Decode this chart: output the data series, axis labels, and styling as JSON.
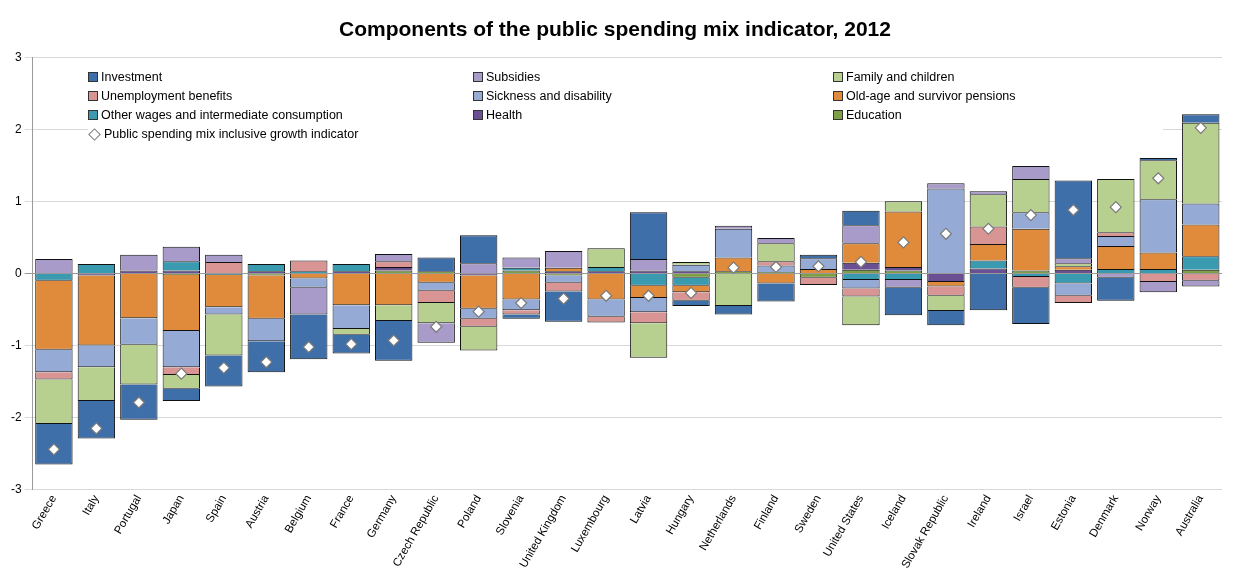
{
  "chart_data": {
    "type": "bar",
    "title": "Components of the public spending mix indicator, 2012",
    "stacked": true,
    "ylim": [
      -3,
      3
    ],
    "yticks": [
      -3,
      -2,
      -1,
      0,
      1,
      2,
      3
    ],
    "grid": "y",
    "legend": "top left",
    "categories": [
      "Greece",
      "Italy",
      "Portugal",
      "Japan",
      "Spain",
      "Austria",
      "Belgium",
      "France",
      "Germany",
      "Czech Republic",
      "Poland",
      "Slovenia",
      "United Kingdom",
      "Luxembourg",
      "Latvia",
      "Hungary",
      "Netherlands",
      "Finland",
      "Sweden",
      "United States",
      "Iceland",
      "Slovak Republic",
      "Ireland",
      "Israel",
      "Estonia",
      "Denmark",
      "Norway",
      "Australia"
    ],
    "series": [
      {
        "name": "Education",
        "color": "#7f9f45",
        "values": [
          null,
          null,
          null,
          -0.02,
          null,
          -0.03,
          null,
          null,
          0.04,
          0.03,
          null,
          0.04,
          -0.03,
          null,
          null,
          -0.06,
          0.03,
          0.02,
          -0.06,
          0.05,
          0.04,
          null,
          null,
          0.04,
          null,
          null,
          null,
          0.05
        ]
      },
      {
        "name": "Health",
        "color": "#6a4f93",
        "values": [
          null,
          -0.03,
          0.04,
          0.04,
          null,
          0.03,
          null,
          0.03,
          0.05,
          null,
          -0.03,
          null,
          0.03,
          0.03,
          0.04,
          0.03,
          null,
          null,
          null,
          0.1,
          0.05,
          -0.12,
          0.07,
          null,
          0.05,
          null,
          null,
          null
        ]
      },
      {
        "name": "Other wages and intermediate consumption",
        "color": "#3a9ab0",
        "values": [
          -0.1,
          0.13,
          null,
          0.13,
          -0.02,
          0.1,
          0.03,
          0.1,
          null,
          null,
          null,
          0.04,
          null,
          0.06,
          -0.17,
          -0.11,
          null,
          null,
          null,
          -0.09,
          -0.09,
          null,
          0.11,
          -0.05,
          -0.14,
          0.06,
          0.06,
          0.19
        ]
      },
      {
        "name": "Old-age and survivor pensions",
        "color": "#e08a3c",
        "values": [
          -0.96,
          -0.97,
          -0.62,
          -0.78,
          -0.45,
          -0.6,
          -0.07,
          -0.44,
          -0.44,
          -0.13,
          -0.46,
          -0.36,
          0.05,
          -0.36,
          -0.17,
          -0.09,
          0.19,
          -0.14,
          0.06,
          0.27,
          0.77,
          -0.06,
          0.23,
          0.58,
          0.05,
          0.32,
          0.23,
          0.44
        ]
      },
      {
        "name": "Sickness and disability",
        "color": "#95abd6",
        "values": [
          -0.31,
          -0.3,
          -0.37,
          -0.5,
          -0.1,
          -0.31,
          -0.13,
          -0.33,
          null,
          -0.11,
          -0.14,
          -0.15,
          -0.1,
          -0.24,
          -0.2,
          0.09,
          0.4,
          0.09,
          0.15,
          -0.12,
          null,
          1.18,
          null,
          0.23,
          -0.17,
          0.14,
          0.74,
          0.29
        ]
      },
      {
        "name": "Unemployment benefits",
        "color": "#d99594",
        "values": [
          -0.1,
          null,
          null,
          -0.11,
          0.16,
          null,
          0.15,
          null,
          0.08,
          -0.17,
          -0.11,
          -0.06,
          -0.12,
          -0.08,
          -0.15,
          -0.12,
          null,
          0.06,
          -0.1,
          -0.11,
          null,
          -0.13,
          0.24,
          -0.15,
          -0.1,
          0.05,
          -0.12,
          -0.1
        ]
      },
      {
        "name": "Family and children",
        "color": "#b8d08f",
        "values": [
          -0.62,
          -0.47,
          -0.55,
          -0.19,
          -0.57,
          null,
          null,
          -0.08,
          -0.22,
          -0.28,
          -0.33,
          null,
          null,
          0.26,
          -0.48,
          0.04,
          -0.45,
          0.25,
          null,
          -0.4,
          0.14,
          -0.21,
          0.45,
          0.46,
          0.04,
          0.74,
          0.54,
          1.12
        ]
      },
      {
        "name": "Subsidies",
        "color": "#a99bc9",
        "values": [
          0.2,
          null,
          0.22,
          0.2,
          0.1,
          null,
          -0.37,
          null,
          0.1,
          -0.27,
          0.14,
          0.14,
          0.23,
          null,
          0.16,
          null,
          0.04,
          0.07,
          null,
          0.25,
          -0.11,
          0.07,
          0.04,
          0.18,
          0.07,
          -0.06,
          -0.14,
          -0.08
        ]
      },
      {
        "name": "Investment",
        "color": "#3f6fa8",
        "values": [
          -0.56,
          -0.52,
          -0.49,
          -0.17,
          -0.43,
          -0.43,
          -0.62,
          -0.26,
          -0.55,
          0.19,
          0.39,
          -0.06,
          -0.42,
          null,
          0.65,
          -0.07,
          -0.12,
          -0.25,
          0.05,
          0.2,
          -0.38,
          -0.2,
          -0.51,
          -0.5,
          1.08,
          -0.32,
          0.03,
          0.12
        ]
      },
      {
        "name": "Public spending mix inclusive growth indicator",
        "type": "scatter",
        "marker": "diamond",
        "color": "#ffffff",
        "values": [
          -2.44,
          -2.15,
          -1.79,
          -1.39,
          -1.31,
          -1.23,
          -1.02,
          -0.98,
          -0.93,
          -0.74,
          -0.53,
          -0.41,
          -0.35,
          -0.31,
          -0.31,
          -0.27,
          0.08,
          0.09,
          0.1,
          0.16,
          0.43,
          0.55,
          0.62,
          0.81,
          0.88,
          0.92,
          1.32,
          2.02
        ]
      }
    ]
  }
}
